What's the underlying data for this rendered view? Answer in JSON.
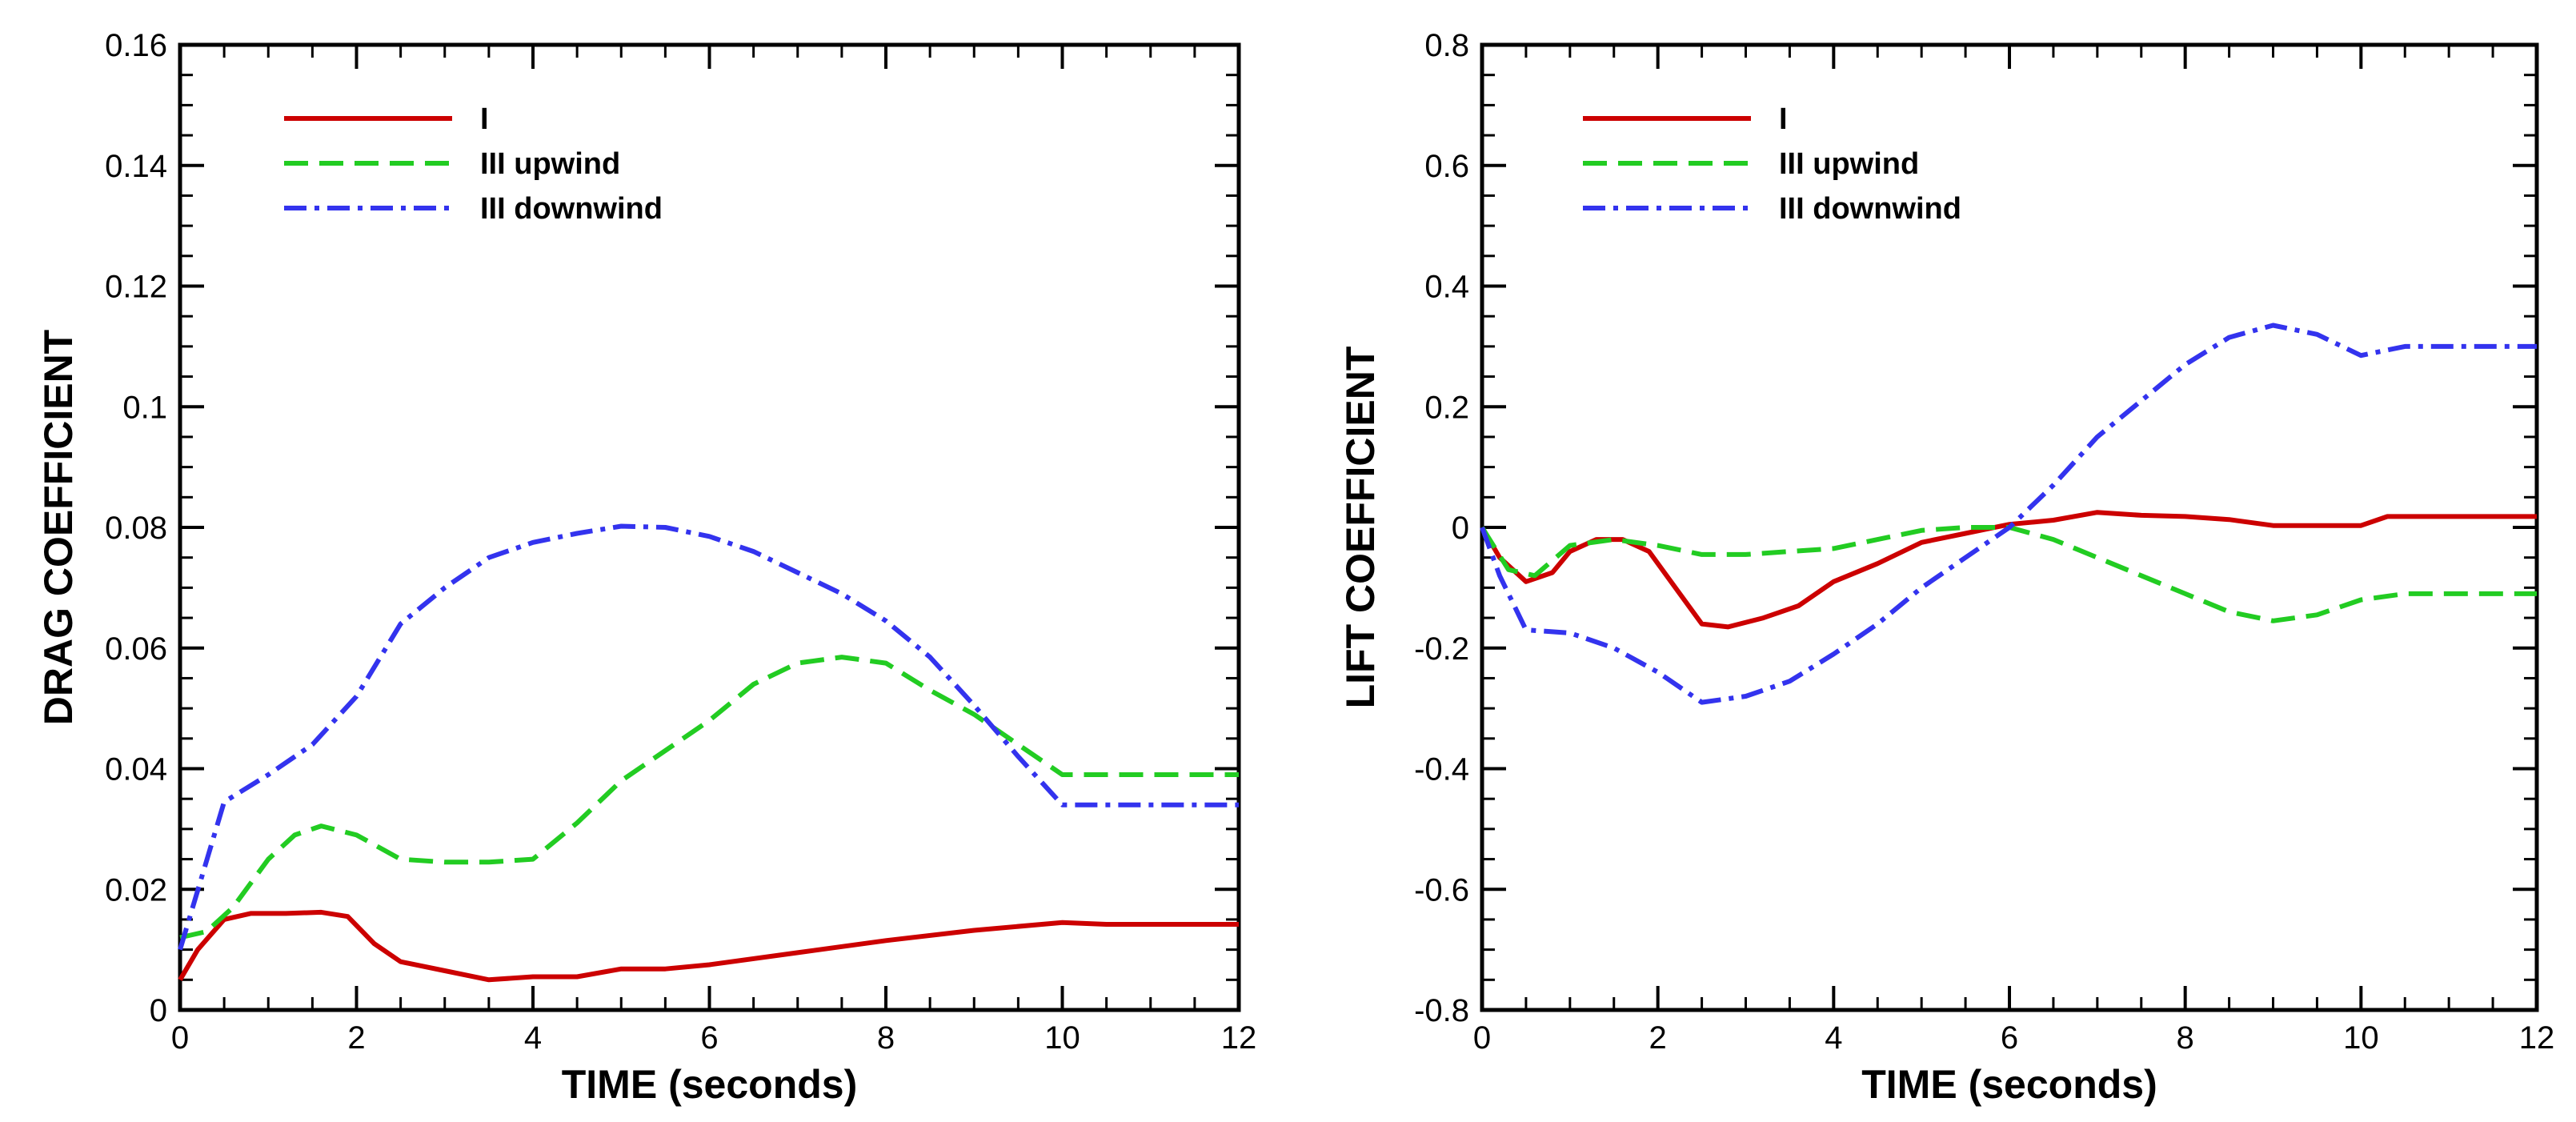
{
  "colors": {
    "I": "#cc0000",
    "III upwind": "#22cc22",
    "III downwind": "#3333ee"
  },
  "chart_data": [
    {
      "type": "line",
      "xlabel": "TIME (seconds)",
      "ylabel": "DRAG COEFFICIENT",
      "xlim": [
        0,
        12
      ],
      "ylim": [
        0,
        0.16
      ],
      "x_ticks": [
        "0",
        "2",
        "4",
        "6",
        "8",
        "10",
        "12"
      ],
      "y_ticks": [
        "0",
        "0.02",
        "0.04",
        "0.06",
        "0.08",
        "0.1",
        "0.12",
        "0.14",
        "0.16"
      ],
      "grid": false,
      "legend": "top-left",
      "series": [
        {
          "name": "I",
          "style": "solid",
          "x": [
            0,
            0.2,
            0.5,
            0.8,
            1.2,
            1.6,
            1.9,
            2.2,
            2.5,
            3.0,
            3.5,
            4.0,
            4.5,
            5.0,
            5.5,
            6.0,
            7.0,
            8.0,
            9.0,
            10.0,
            10.5,
            11.0,
            12.0
          ],
          "y": [
            0.005,
            0.01,
            0.015,
            0.016,
            0.016,
            0.0162,
            0.0155,
            0.011,
            0.008,
            0.0065,
            0.005,
            0.0055,
            0.0055,
            0.0068,
            0.0068,
            0.0075,
            0.0095,
            0.0115,
            0.0132,
            0.0145,
            0.0142,
            0.0142,
            0.0142
          ]
        },
        {
          "name": "III upwind",
          "style": "dashed",
          "x": [
            0,
            0.3,
            0.6,
            1.0,
            1.3,
            1.6,
            2.0,
            2.5,
            3.0,
            3.5,
            4.0,
            4.5,
            5.0,
            6.0,
            6.5,
            7.0,
            7.5,
            8.0,
            8.5,
            9.0,
            9.5,
            10.0,
            12.0
          ],
          "y": [
            0.012,
            0.013,
            0.017,
            0.025,
            0.029,
            0.0305,
            0.029,
            0.025,
            0.0245,
            0.0245,
            0.025,
            0.031,
            0.038,
            0.048,
            0.054,
            0.0575,
            0.0585,
            0.0575,
            0.053,
            0.049,
            0.044,
            0.039,
            0.039
          ]
        },
        {
          "name": "III downwind",
          "style": "dashdot",
          "x": [
            0,
            0.5,
            1.0,
            1.5,
            2.0,
            2.5,
            3.0,
            3.5,
            4.0,
            4.5,
            5.0,
            5.5,
            6.0,
            6.5,
            7.0,
            7.5,
            8.0,
            8.5,
            9.0,
            9.5,
            10.0,
            10.5,
            11.0,
            12.0
          ],
          "y": [
            0.01,
            0.0345,
            0.039,
            0.044,
            0.052,
            0.064,
            0.07,
            0.075,
            0.0775,
            0.079,
            0.0802,
            0.08,
            0.0785,
            0.076,
            0.0725,
            0.069,
            0.0645,
            0.0585,
            0.0505,
            0.042,
            0.034,
            0.034,
            0.034,
            0.034
          ]
        }
      ]
    },
    {
      "type": "line",
      "xlabel": "TIME (seconds)",
      "ylabel": "LIFT COEFFICIENT",
      "xlim": [
        0,
        12
      ],
      "ylim": [
        -0.8,
        0.8
      ],
      "x_ticks": [
        "0",
        "2",
        "4",
        "6",
        "8",
        "10",
        "12"
      ],
      "y_ticks": [
        "-0.8",
        "-0.6",
        "-0.4",
        "-0.2",
        "0",
        "0.2",
        "0.4",
        "0.6",
        "0.8"
      ],
      "grid": false,
      "legend": "top-left",
      "series": [
        {
          "name": "I",
          "style": "solid",
          "x": [
            0,
            0.2,
            0.5,
            0.8,
            1.0,
            1.3,
            1.6,
            1.9,
            2.2,
            2.5,
            2.8,
            3.2,
            3.6,
            4.0,
            4.5,
            5.0,
            5.5,
            6.0,
            6.5,
            7.0,
            7.5,
            8.0,
            8.5,
            9.0,
            9.5,
            10.0,
            10.3,
            11.0,
            12.0
          ],
          "y": [
            0,
            -0.05,
            -0.09,
            -0.075,
            -0.04,
            -0.02,
            -0.02,
            -0.04,
            -0.1,
            -0.16,
            -0.165,
            -0.15,
            -0.13,
            -0.09,
            -0.06,
            -0.025,
            -0.01,
            0.005,
            0.012,
            0.025,
            0.02,
            0.018,
            0.013,
            0.003,
            0.003,
            0.003,
            0.018,
            0.018,
            0.018
          ]
        },
        {
          "name": "III upwind",
          "style": "dashed",
          "x": [
            0,
            0.3,
            0.6,
            1.0,
            1.5,
            2.0,
            2.5,
            3.0,
            3.5,
            4.0,
            4.5,
            5.0,
            5.5,
            6.0,
            6.5,
            7.0,
            7.5,
            8.0,
            8.5,
            9.0,
            9.5,
            10.0,
            10.5,
            11.0,
            12.0
          ],
          "y": [
            0,
            -0.07,
            -0.08,
            -0.03,
            -0.02,
            -0.03,
            -0.045,
            -0.045,
            -0.04,
            -0.035,
            -0.02,
            -0.005,
            0,
            0,
            -0.02,
            -0.05,
            -0.08,
            -0.11,
            -0.14,
            -0.155,
            -0.145,
            -0.12,
            -0.11,
            -0.11,
            -0.11
          ]
        },
        {
          "name": "III downwind",
          "style": "dashdot",
          "x": [
            0,
            0.2,
            0.5,
            1.0,
            1.5,
            2.0,
            2.5,
            3.0,
            3.5,
            4.0,
            4.5,
            5.0,
            5.5,
            6.0,
            6.5,
            7.0,
            7.5,
            8.0,
            8.5,
            9.0,
            9.5,
            10.0,
            10.5,
            11.0,
            12.0
          ],
          "y": [
            0,
            -0.08,
            -0.17,
            -0.175,
            -0.2,
            -0.24,
            -0.29,
            -0.28,
            -0.255,
            -0.21,
            -0.16,
            -0.1,
            -0.05,
            0,
            0.07,
            0.15,
            0.21,
            0.27,
            0.315,
            0.335,
            0.32,
            0.285,
            0.3,
            0.3,
            0.3
          ]
        }
      ]
    }
  ]
}
